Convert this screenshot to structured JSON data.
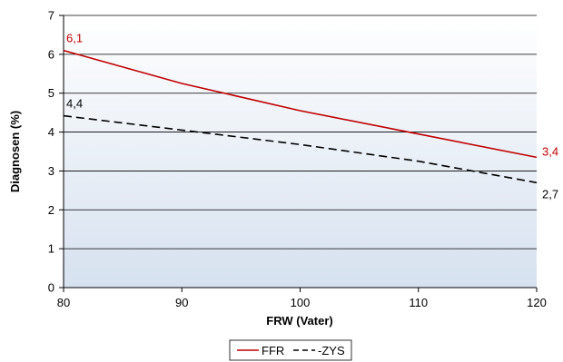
{
  "chart_data": {
    "type": "line",
    "xlabel": "FRW (Vater)",
    "ylabel": "Diagnosen (%)",
    "xlim": [
      80,
      120
    ],
    "ylim": [
      0,
      7
    ],
    "x_ticks": [
      "80",
      "90",
      "100",
      "110",
      "120"
    ],
    "y_ticks": [
      "0",
      "1",
      "2",
      "3",
      "4",
      "5",
      "6",
      "7"
    ],
    "grid": true,
    "legend_position": "bottom",
    "series": [
      {
        "name": "FFR",
        "color": "#c00000",
        "style": "solid",
        "x": [
          80,
          90,
          100,
          110,
          120
        ],
        "y": [
          6.1,
          5.25,
          4.55,
          3.95,
          3.35
        ],
        "start_label": "6,1",
        "end_label": "3,4"
      },
      {
        "name": "-ZYS",
        "color": "#000000",
        "style": "dashed",
        "x": [
          80,
          90,
          100,
          110,
          120
        ],
        "y": [
          4.42,
          4.05,
          3.68,
          3.25,
          2.7
        ],
        "start_label": "4,4",
        "end_label": "2,7"
      }
    ]
  }
}
